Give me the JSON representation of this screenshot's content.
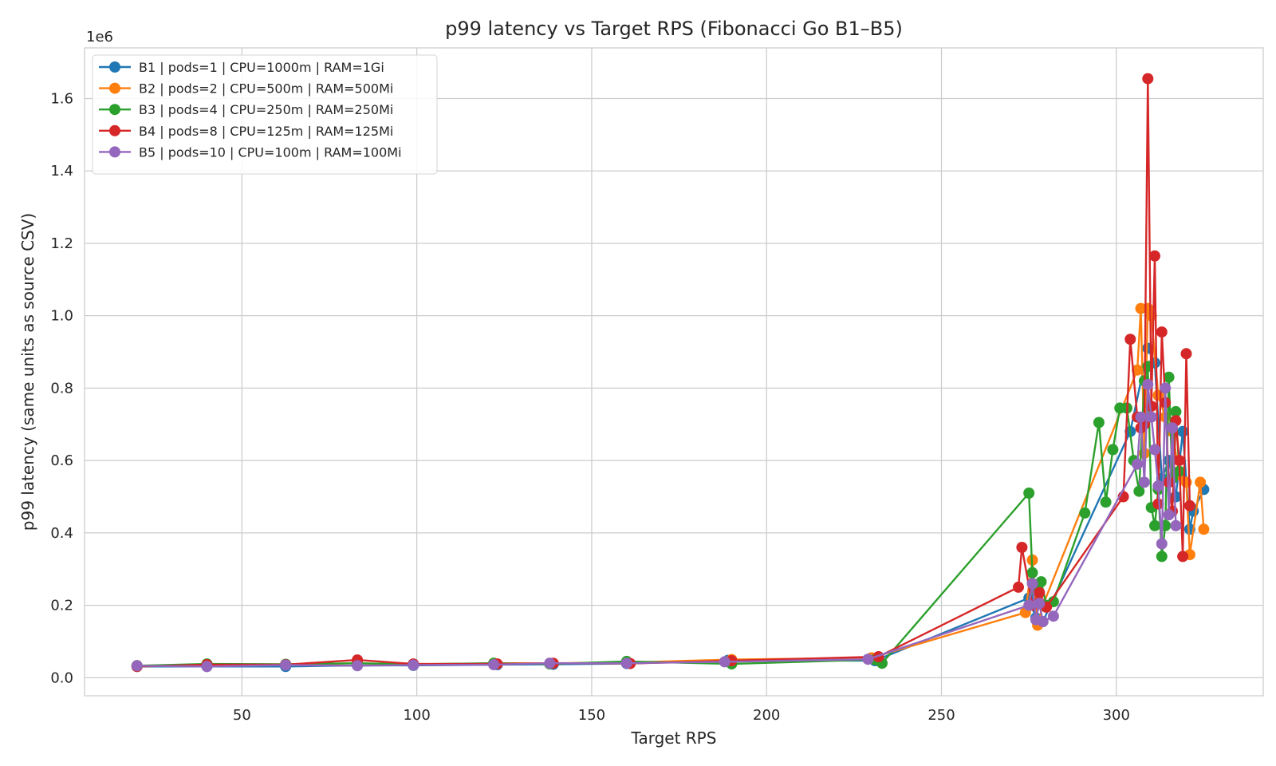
{
  "chart_data": {
    "type": "line",
    "title": "p99 latency vs Target RPS (Fibonacci Go B1–B5)",
    "xlabel": "Target RPS",
    "ylabel": "p99 latency (same units as source CSV)",
    "y_offset_label": "1e6",
    "xlim": [
      5,
      342
    ],
    "ylim": [
      -0.05,
      1.74
    ],
    "xticks": [
      50,
      100,
      150,
      200,
      250,
      300
    ],
    "yticks": [
      0.0,
      0.2,
      0.4,
      0.6,
      0.8,
      1.0,
      1.2,
      1.4,
      1.6
    ],
    "xtick_labels": [
      "50",
      "100",
      "150",
      "200",
      "250",
      "300"
    ],
    "ytick_labels": [
      "0.0",
      "0.2",
      "0.4",
      "0.6",
      "0.8",
      "1.0",
      "1.2",
      "1.4",
      "1.6"
    ],
    "grid": true,
    "legend_position": "top-left",
    "series": [
      {
        "name": "B1 | pods=1 | CPU=1000m | RAM=1Gi",
        "color": "#1f77b4",
        "x": [
          20,
          40,
          62.5,
          83,
          99,
          123,
          139,
          160,
          189,
          231,
          275,
          277,
          279,
          304,
          309,
          311,
          313,
          315,
          317,
          319,
          321,
          322,
          325
        ],
        "y": [
          0.031,
          0.031,
          0.031,
          0.034,
          0.034,
          0.036,
          0.037,
          0.039,
          0.048,
          0.047,
          0.22,
          0.165,
          0.155,
          0.68,
          0.91,
          0.87,
          0.55,
          0.6,
          0.5,
          0.68,
          0.41,
          0.46,
          0.52
        ]
      },
      {
        "name": "B2 | pods=2 | CPU=500m | RAM=500Mi",
        "color": "#ff7f0e",
        "x": [
          20,
          40,
          62.5,
          83,
          99,
          122,
          138,
          160,
          190,
          230,
          274,
          276,
          277.5,
          279,
          306,
          307,
          308,
          309,
          310,
          312,
          314,
          316,
          318,
          320,
          321,
          324,
          325
        ],
        "y": [
          0.033,
          0.036,
          0.036,
          0.04,
          0.036,
          0.04,
          0.04,
          0.042,
          0.05,
          0.055,
          0.18,
          0.325,
          0.145,
          0.2,
          0.85,
          1.02,
          0.62,
          1.02,
          1.0,
          0.78,
          0.72,
          0.68,
          0.56,
          0.54,
          0.34,
          0.54,
          0.41
        ]
      },
      {
        "name": "B3 | pods=4 | CPU=250m | RAM=250Mi",
        "color": "#2ca02c",
        "x": [
          20,
          40,
          62.5,
          83,
          99,
          122,
          138,
          160,
          190,
          231,
          233,
          275,
          276,
          277,
          278.5,
          280,
          282,
          291,
          295,
          297,
          299,
          301,
          303,
          305,
          306.5,
          308,
          309,
          310,
          311,
          312,
          313,
          314,
          315,
          316,
          317,
          318
        ],
        "y": [
          0.033,
          0.038,
          0.037,
          0.04,
          0.037,
          0.04,
          0.038,
          0.045,
          0.038,
          0.05,
          0.04,
          0.51,
          0.29,
          0.24,
          0.265,
          0.2,
          0.21,
          0.455,
          0.705,
          0.485,
          0.63,
          0.745,
          0.745,
          0.6,
          0.515,
          0.82,
          0.86,
          0.47,
          0.42,
          0.52,
          0.335,
          0.42,
          0.83,
          0.55,
          0.735,
          0.57
        ]
      },
      {
        "name": "B4 | pods=8 | CPU=125m | RAM=125Mi",
        "color": "#d62728",
        "x": [
          20,
          40,
          62.5,
          83,
          99,
          123,
          139,
          161,
          190,
          232,
          272,
          273,
          276,
          278,
          280,
          302,
          304,
          306,
          307,
          308,
          309,
          310,
          311,
          312,
          313,
          314,
          315,
          316,
          317,
          318,
          319,
          320,
          321
        ],
        "y": [
          0.031,
          0.036,
          0.036,
          0.049,
          0.038,
          0.038,
          0.04,
          0.039,
          0.047,
          0.058,
          0.25,
          0.36,
          0.2,
          0.235,
          0.195,
          0.5,
          0.935,
          0.72,
          0.69,
          0.7,
          1.655,
          0.75,
          1.165,
          0.48,
          0.955,
          0.76,
          0.54,
          0.46,
          0.71,
          0.6,
          0.335,
          0.895,
          0.475
        ]
      },
      {
        "name": "B5 | pods=10 | CPU=100m | RAM=100Mi",
        "color": "#9467bd",
        "x": [
          20,
          40,
          62.5,
          83,
          99,
          122,
          138,
          160,
          188,
          229,
          275,
          276,
          277,
          278,
          279,
          282,
          306,
          307,
          308,
          309,
          310,
          311,
          312,
          313,
          314,
          315,
          316,
          317
        ],
        "y": [
          0.033,
          0.031,
          0.035,
          0.033,
          0.035,
          0.036,
          0.04,
          0.04,
          0.044,
          0.051,
          0.2,
          0.26,
          0.16,
          0.205,
          0.155,
          0.17,
          0.59,
          0.72,
          0.54,
          0.81,
          0.72,
          0.63,
          0.53,
          0.37,
          0.8,
          0.45,
          0.69,
          0.42
        ]
      }
    ]
  }
}
